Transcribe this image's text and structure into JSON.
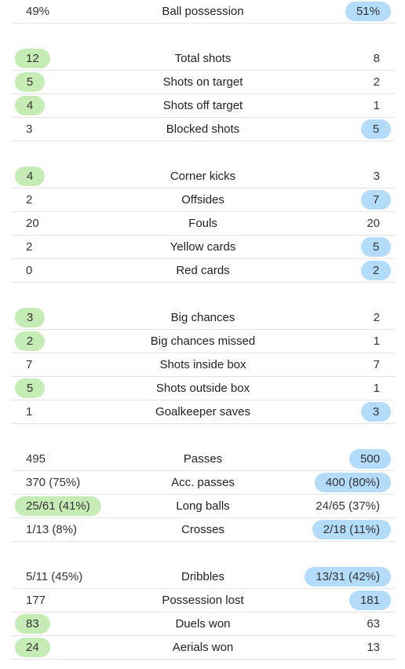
{
  "colors": {
    "home_highlight": "#c6ecb6",
    "away_highlight": "#b3dcfa"
  },
  "groups": [
    {
      "rows": [
        {
          "label": "Ball possession",
          "home": "49%",
          "away": "51%",
          "winner": "away"
        }
      ]
    },
    {
      "rows": [
        {
          "label": "Total shots",
          "home": "12",
          "away": "8",
          "winner": "home"
        },
        {
          "label": "Shots on target",
          "home": "5",
          "away": "2",
          "winner": "home"
        },
        {
          "label": "Shots off target",
          "home": "4",
          "away": "1",
          "winner": "home"
        },
        {
          "label": "Blocked shots",
          "home": "3",
          "away": "5",
          "winner": "away"
        }
      ]
    },
    {
      "rows": [
        {
          "label": "Corner kicks",
          "home": "4",
          "away": "3",
          "winner": "home"
        },
        {
          "label": "Offsides",
          "home": "2",
          "away": "7",
          "winner": "away"
        },
        {
          "label": "Fouls",
          "home": "20",
          "away": "20",
          "winner": "none"
        },
        {
          "label": "Yellow cards",
          "home": "2",
          "away": "5",
          "winner": "away"
        },
        {
          "label": "Red cards",
          "home": "0",
          "away": "2",
          "winner": "away"
        }
      ]
    },
    {
      "rows": [
        {
          "label": "Big chances",
          "home": "3",
          "away": "2",
          "winner": "home"
        },
        {
          "label": "Big chances missed",
          "home": "2",
          "away": "1",
          "winner": "home"
        },
        {
          "label": "Shots inside box",
          "home": "7",
          "away": "7",
          "winner": "none"
        },
        {
          "label": "Shots outside box",
          "home": "5",
          "away": "1",
          "winner": "home"
        },
        {
          "label": "Goalkeeper saves",
          "home": "1",
          "away": "3",
          "winner": "away"
        }
      ]
    },
    {
      "rows": [
        {
          "label": "Passes",
          "home": "495",
          "away": "500",
          "winner": "away"
        },
        {
          "label": "Acc. passes",
          "home": "370 (75%)",
          "away": "400 (80%)",
          "winner": "away"
        },
        {
          "label": "Long balls",
          "home": "25/61 (41%)",
          "away": "24/65 (37%)",
          "winner": "home"
        },
        {
          "label": "Crosses",
          "home": "1/13 (8%)",
          "away": "2/18 (11%)",
          "winner": "away"
        }
      ]
    },
    {
      "rows": [
        {
          "label": "Dribbles",
          "home": "5/11 (45%)",
          "away": "13/31 (42%)",
          "winner": "away"
        },
        {
          "label": "Possession lost",
          "home": "177",
          "away": "181",
          "winner": "away"
        },
        {
          "label": "Duels won",
          "home": "83",
          "away": "63",
          "winner": "home"
        },
        {
          "label": "Aerials won",
          "home": "24",
          "away": "13",
          "winner": "home"
        }
      ]
    }
  ]
}
